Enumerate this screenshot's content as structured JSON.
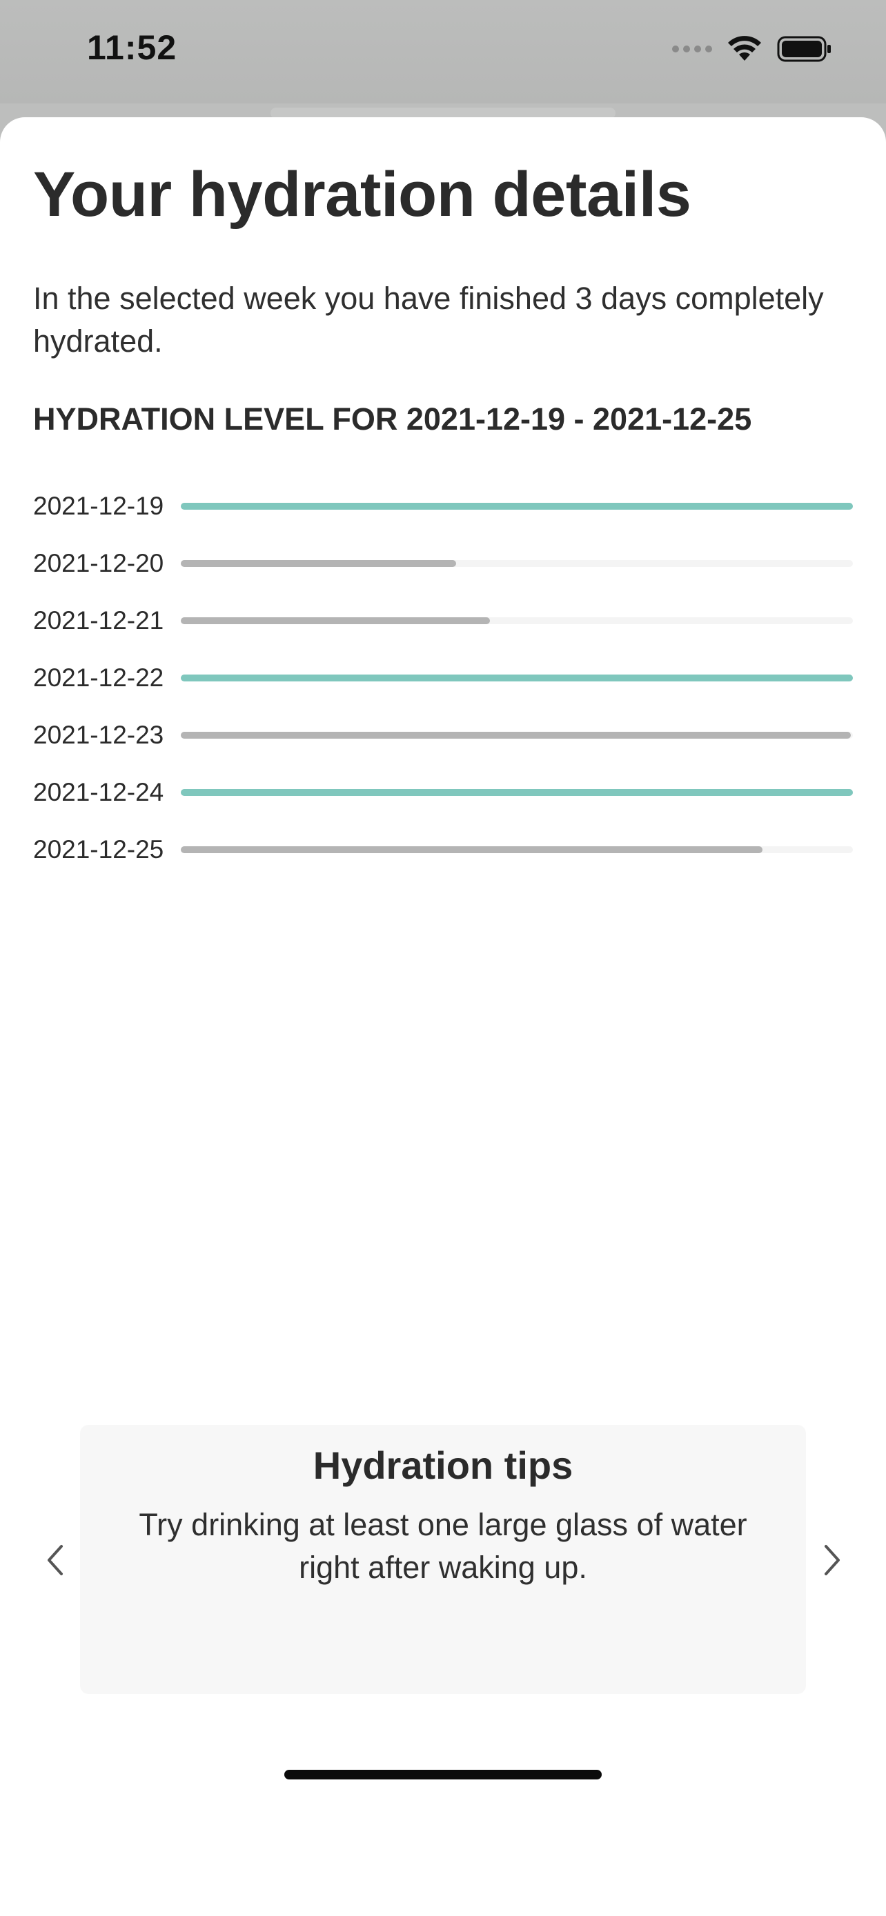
{
  "status_bar": {
    "time": "11:52",
    "icons": [
      "cellular-signal-icon",
      "wifi-icon",
      "battery-icon"
    ]
  },
  "sheet": {
    "title": "Your hydration details",
    "summary": "In the selected week you have finished 3 days completely hydrated.",
    "section_heading": "HYDRATION LEVEL FOR 2021-12-19 - 2021-12-25",
    "days": [
      {
        "date": "2021-12-19",
        "level": 1.0
      },
      {
        "date": "2021-12-20",
        "level": 0.41
      },
      {
        "date": "2021-12-21",
        "level": 0.46
      },
      {
        "date": "2021-12-22",
        "level": 1.0
      },
      {
        "date": "2021-12-23",
        "level": 0.997
      },
      {
        "date": "2021-12-24",
        "level": 1.0
      },
      {
        "date": "2021-12-25",
        "level": 0.865
      }
    ],
    "colors": {
      "complete": "#7fc7bd",
      "partial": "#b4b4b4",
      "track": "#f4f4f4"
    }
  },
  "tips": {
    "title": "Hydration tips",
    "text": "Try drinking at least one large glass of water right after waking up.",
    "prev_icon": "chevron-left-icon",
    "next_icon": "chevron-right-icon"
  }
}
